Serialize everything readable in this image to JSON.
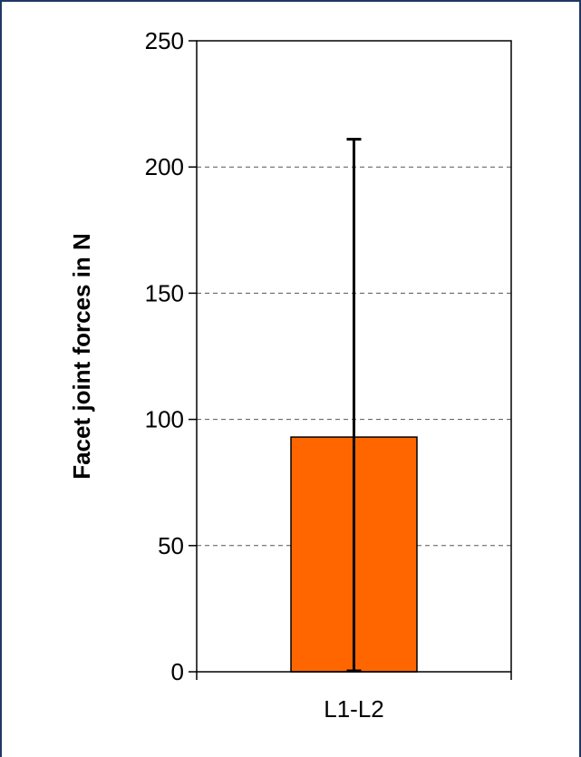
{
  "chart_data": {
    "type": "bar",
    "title": "",
    "xlabel": "",
    "ylabel": "Facet joint forces in N",
    "categories": [
      "L1-L2"
    ],
    "series": [
      {
        "values": [
          93
        ],
        "error": [
          [
            0,
            211
          ]
        ]
      }
    ],
    "ylim": [
      0,
      250
    ],
    "yticks": [
      0,
      50,
      100,
      150,
      200,
      250
    ],
    "ytick_labels": [
      "0",
      "50",
      "100",
      "150",
      "200",
      "250"
    ],
    "grid": "horizontal-dashed",
    "legend": "none",
    "colors": {
      "bar_fill": "#ff6600",
      "bar_stroke": "#000000",
      "grid": "#555555",
      "frame": "#1f3864"
    }
  }
}
